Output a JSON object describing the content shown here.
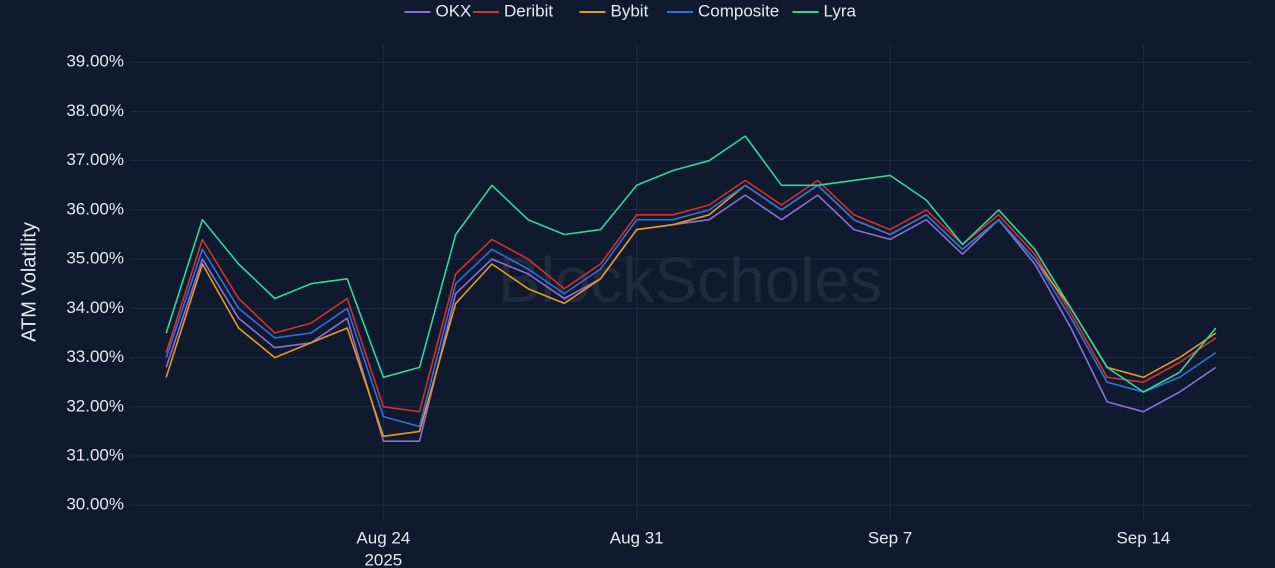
{
  "chart_data": {
    "type": "line",
    "watermark": "BlockScholes",
    "y_label": "ATM Volatility",
    "background": "#0f1a2e",
    "grid": true,
    "grid_color": "#1f2d47",
    "legend": "top",
    "x": [
      "2025-08-18",
      "2025-08-19",
      "2025-08-20",
      "2025-08-21",
      "2025-08-22",
      "2025-08-23",
      "2025-08-24",
      "2025-08-25",
      "2025-08-26",
      "2025-08-27",
      "2025-08-28",
      "2025-08-29",
      "2025-08-30",
      "2025-08-31",
      "2025-09-01",
      "2025-09-02",
      "2025-09-03",
      "2025-09-04",
      "2025-09-05",
      "2025-09-06",
      "2025-09-07",
      "2025-09-08",
      "2025-09-09",
      "2025-09-10",
      "2025-09-11",
      "2025-09-12",
      "2025-09-13",
      "2025-09-14",
      "2025-09-15",
      "2025-09-16"
    ],
    "xlim": [
      "2025-08-17",
      "2025-09-17"
    ],
    "xticks": [
      {
        "value": "2025-08-24",
        "label": "Aug 24"
      },
      {
        "value": "2025-08-31",
        "label": "Aug 31"
      },
      {
        "value": "2025-09-07",
        "label": "Sep 7"
      },
      {
        "value": "2025-09-14",
        "label": "Sep 14"
      }
    ],
    "x_year": "2025",
    "ylim": [
      29.7,
      39.35
    ],
    "yticks": [
      {
        "value": 30,
        "label": "30.00%"
      },
      {
        "value": 31,
        "label": "31.00%"
      },
      {
        "value": 32,
        "label": "32.00%"
      },
      {
        "value": 33,
        "label": "33.00%"
      },
      {
        "value": 34,
        "label": "34.00%"
      },
      {
        "value": 35,
        "label": "35.00%"
      },
      {
        "value": 36,
        "label": "36.00%"
      },
      {
        "value": 37,
        "label": "37.00%"
      },
      {
        "value": 38,
        "label": "38.00%"
      },
      {
        "value": 39,
        "label": "39.00%"
      }
    ],
    "series": [
      {
        "name": "OKX",
        "color": "#8b6fd6",
        "values": [
          32.8,
          35.0,
          33.8,
          33.2,
          33.3,
          33.8,
          31.3,
          31.3,
          34.3,
          35.0,
          34.7,
          34.2,
          34.6,
          35.6,
          35.7,
          35.8,
          36.3,
          35.8,
          36.3,
          35.6,
          35.4,
          35.8,
          35.1,
          35.8,
          34.9,
          33.6,
          32.1,
          31.9,
          32.3,
          32.8
        ]
      },
      {
        "name": "Deribit",
        "color": "#d6302b",
        "values": [
          33.1,
          35.4,
          34.2,
          33.5,
          33.7,
          34.2,
          32.0,
          31.9,
          34.7,
          35.4,
          35.0,
          34.4,
          34.9,
          35.9,
          35.9,
          36.1,
          36.6,
          36.1,
          36.6,
          35.9,
          35.6,
          36.0,
          35.3,
          35.9,
          35.1,
          33.9,
          32.6,
          32.5,
          32.9,
          33.4
        ]
      },
      {
        "name": "Bybit",
        "color": "#e89a1a",
        "values": [
          32.6,
          34.9,
          33.6,
          33.0,
          33.3,
          33.6,
          31.4,
          31.5,
          34.1,
          34.9,
          34.4,
          34.1,
          34.6,
          35.6,
          35.7,
          35.9,
          36.5,
          36.0,
          36.5,
          35.8,
          35.5,
          35.9,
          35.2,
          35.8,
          35.0,
          34.0,
          32.8,
          32.6,
          33.0,
          33.5
        ]
      },
      {
        "name": "Composite",
        "color": "#2f6fdf",
        "values": [
          33.0,
          35.2,
          34.0,
          33.4,
          33.5,
          34.0,
          31.8,
          31.6,
          34.5,
          35.2,
          34.8,
          34.3,
          34.8,
          35.8,
          35.8,
          36.0,
          36.5,
          36.0,
          36.5,
          35.8,
          35.5,
          35.9,
          35.2,
          35.8,
          35.0,
          33.8,
          32.5,
          32.3,
          32.6,
          33.1
        ]
      },
      {
        "name": "Lyra",
        "color": "#2fd6a0",
        "values": [
          33.5,
          35.8,
          34.9,
          34.2,
          34.5,
          34.6,
          32.6,
          32.8,
          35.5,
          36.5,
          35.8,
          35.5,
          35.6,
          36.5,
          36.8,
          37.0,
          37.5,
          36.5,
          36.5,
          36.6,
          36.7,
          36.2,
          35.3,
          36.0,
          35.2,
          34.0,
          32.8,
          32.3,
          32.7,
          33.6
        ]
      }
    ]
  }
}
